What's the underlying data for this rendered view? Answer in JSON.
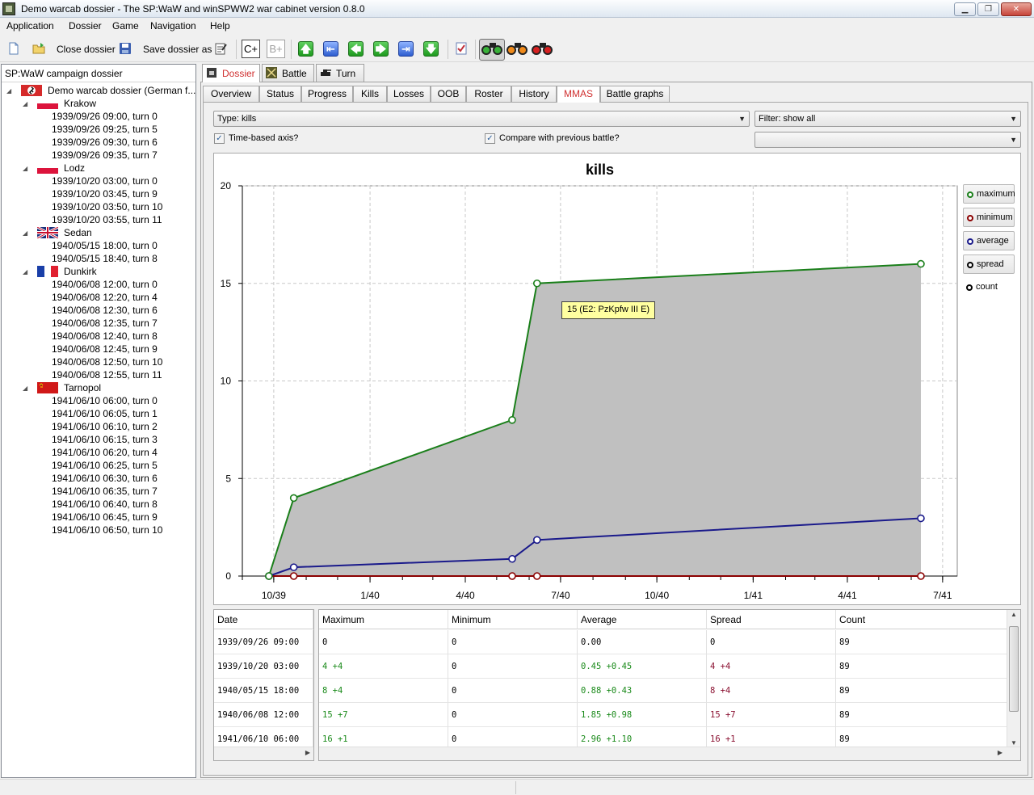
{
  "window": {
    "title": "Demo warcab dossier - The SP:WaW and winSPWW2 war cabinet version 0.8.0",
    "minimize": "▁",
    "maximize": "❐",
    "close": "✕"
  },
  "menu": [
    "Application",
    "Dossier",
    "Game",
    "Navigation",
    "Help"
  ],
  "toolbar": {
    "close_dossier": "Close dossier",
    "save_dossier_as": "Save dossier as",
    "btn_c_plus": "C+",
    "btn_b_plus": "B+",
    "arrows": [
      "🡅",
      "⇤",
      "🡄",
      "🡆",
      "⇥",
      "🡇"
    ]
  },
  "tree": {
    "header": "SP:WaW campaign dossier",
    "root": "Demo warcab dossier (German f...",
    "battles": [
      {
        "name": "Krakow",
        "flag": "poland",
        "turns": [
          "1939/09/26 09:00, turn 0",
          "1939/09/26 09:25, turn 5",
          "1939/09/26 09:30, turn 6",
          "1939/09/26 09:35, turn 7"
        ]
      },
      {
        "name": "Lodz",
        "flag": "poland",
        "turns": [
          "1939/10/20 03:00, turn 0",
          "1939/10/20 03:45, turn 9",
          "1939/10/20 03:50, turn 10",
          "1939/10/20 03:55, turn 11"
        ]
      },
      {
        "name": "Sedan",
        "flag": "uk",
        "turns": [
          "1940/05/15 18:00, turn 0",
          "1940/05/15 18:40, turn 8"
        ]
      },
      {
        "name": "Dunkirk",
        "flag": "france",
        "turns": [
          "1940/06/08 12:00, turn 0",
          "1940/06/08 12:20, turn 4",
          "1940/06/08 12:30, turn 6",
          "1940/06/08 12:35, turn 7",
          "1940/06/08 12:40, turn 8",
          "1940/06/08 12:45, turn 9",
          "1940/06/08 12:50, turn 10",
          "1940/06/08 12:55, turn 11"
        ]
      },
      {
        "name": "Tarnopol",
        "flag": "ussr",
        "turns": [
          "1941/06/10 06:00, turn 0",
          "1941/06/10 06:05, turn 1",
          "1941/06/10 06:10, turn 2",
          "1941/06/10 06:15, turn 3",
          "1941/06/10 06:20, turn 4",
          "1941/06/10 06:25, turn 5",
          "1941/06/10 06:30, turn 6",
          "1941/06/10 06:35, turn 7",
          "1941/06/10 06:40, turn 8",
          "1941/06/10 06:45, turn 9",
          "1941/06/10 06:50, turn 10"
        ]
      }
    ]
  },
  "top_tabs": [
    "Dossier",
    "Battle",
    "Turn"
  ],
  "sub_tabs": [
    "Overview",
    "Status",
    "Progress",
    "Kills",
    "Losses",
    "OOB",
    "Roster",
    "History",
    "MMAS",
    "Battle graphs"
  ],
  "controls": {
    "type_combo": "Type: kills",
    "filter_combo": "Filter: show all",
    "time_axis_label": "Time-based axis?",
    "compare_label": "Compare with previous battle?",
    "empty_combo": ""
  },
  "legend": [
    {
      "label": "maximum",
      "color": "#1a7f1a"
    },
    {
      "label": "minimum",
      "color": "#8b0000"
    },
    {
      "label": "average",
      "color": "#1a1a8b"
    },
    {
      "label": "spread",
      "color": "#000000"
    },
    {
      "label": "count",
      "color": "#000000"
    }
  ],
  "tooltip": "15 (E2: PzKpfw III E)",
  "chart_data": {
    "type": "line",
    "title": "kills",
    "x_axis": "time",
    "x_ticks": [
      "10/39",
      "1/40",
      "4/40",
      "7/40",
      "10/40",
      "1/41",
      "4/41",
      "7/41"
    ],
    "y_ticks": [
      "0",
      "5",
      "10",
      "15",
      "20"
    ],
    "ylim": [
      0,
      20
    ],
    "grid": true,
    "legend_position": "right",
    "x": [
      "1939/09/26 09:00",
      "1939/10/20 03:00",
      "1940/05/15 18:00",
      "1940/06/08 12:00",
      "1941/06/10 06:00"
    ],
    "series": [
      {
        "name": "maximum",
        "color": "#1a7f1a",
        "values": [
          0,
          4,
          8,
          15,
          16
        ]
      },
      {
        "name": "minimum",
        "color": "#8b0000",
        "values": [
          0,
          0,
          0,
          0,
          0
        ]
      },
      {
        "name": "average",
        "color": "#1a1a8b",
        "values": [
          0.0,
          0.45,
          0.88,
          1.85,
          2.96
        ]
      },
      {
        "name": "spread",
        "color": "#000000",
        "values": [
          0,
          4,
          8,
          15,
          16
        ]
      },
      {
        "name": "count",
        "color": "#000000",
        "values": [
          89,
          89,
          89,
          89,
          89
        ]
      }
    ],
    "fill_between": [
      "minimum",
      "maximum"
    ],
    "fill_color": "#c0c0c0"
  },
  "table": {
    "row_header_title": "Date",
    "columns": [
      "Maximum",
      "Minimum",
      "Average",
      "Spread",
      "Count"
    ],
    "rows": [
      {
        "date": "1939/09/26 09:00",
        "cells": [
          "0",
          "0",
          "0.00",
          "0",
          "89"
        ]
      },
      {
        "date": "1939/10/20 03:00",
        "cells": [
          "4 +4",
          "0",
          "0.45 +0.45",
          "4 +4",
          "89"
        ]
      },
      {
        "date": "1940/05/15 18:00",
        "cells": [
          "8 +4",
          "0",
          "0.88 +0.43",
          "8 +4",
          "89"
        ]
      },
      {
        "date": "1940/06/08 12:00",
        "cells": [
          "15 +7",
          "0",
          "1.85 +0.98",
          "15 +7",
          "89"
        ]
      },
      {
        "date": "1941/06/10 06:00",
        "cells": [
          "16 +1",
          "0",
          "2.96 +1.10",
          "16 +1",
          "89"
        ]
      }
    ]
  }
}
